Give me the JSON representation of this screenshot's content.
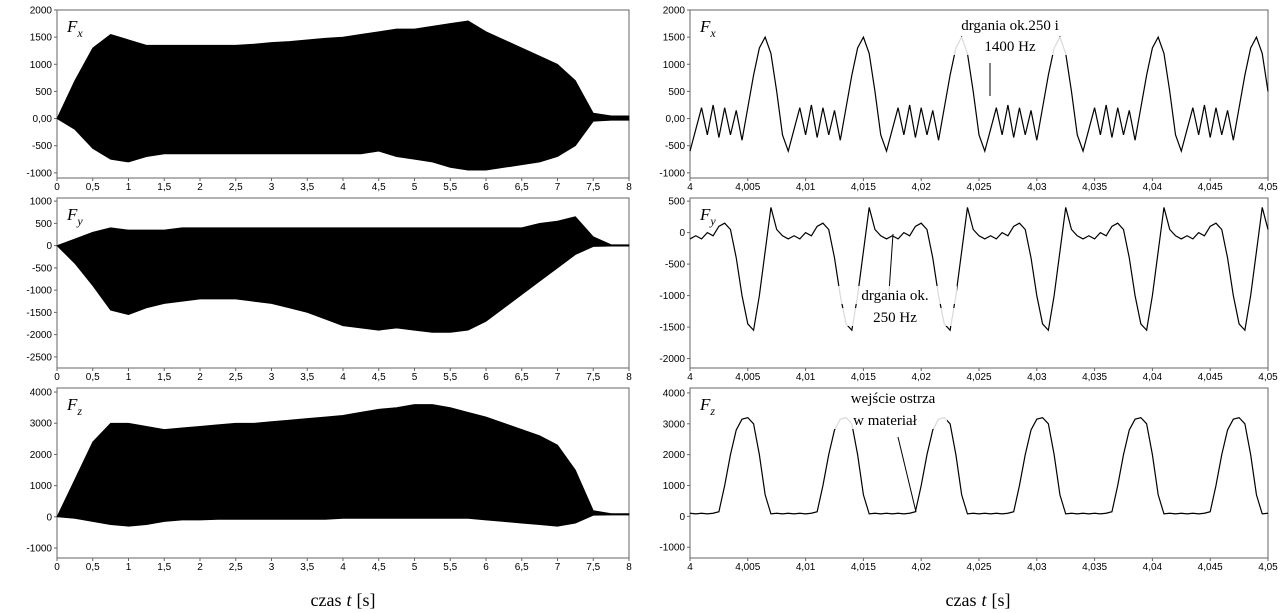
{
  "chart_data": [
    {
      "type": "area",
      "label": "F",
      "label_sub": "x",
      "color": "#000000",
      "grid": false,
      "x": [
        0,
        0.25,
        0.5,
        0.75,
        1,
        1.25,
        1.5,
        1.75,
        2,
        2.25,
        2.5,
        2.75,
        3,
        3.25,
        3.5,
        3.75,
        4,
        4.25,
        4.5,
        4.75,
        5,
        5.25,
        5.5,
        5.75,
        6,
        6.25,
        6.5,
        6.75,
        7,
        7.25,
        7.5,
        7.75,
        8
      ],
      "upper": [
        0,
        700,
        1300,
        1550,
        1450,
        1350,
        1350,
        1350,
        1350,
        1350,
        1350,
        1370,
        1400,
        1420,
        1450,
        1480,
        1500,
        1550,
        1600,
        1650,
        1650,
        1700,
        1750,
        1800,
        1600,
        1450,
        1300,
        1150,
        1000,
        700,
        100,
        50,
        50
      ],
      "lower": [
        0,
        -200,
        -550,
        -750,
        -800,
        -700,
        -650,
        -650,
        -650,
        -650,
        -650,
        -650,
        -650,
        -650,
        -650,
        -650,
        -650,
        -650,
        -600,
        -700,
        -750,
        -800,
        -900,
        -950,
        -950,
        -900,
        -850,
        -800,
        -700,
        -500,
        -50,
        -30,
        -30
      ],
      "xlim": [
        0,
        8
      ],
      "ylim": [
        -1095,
        2000
      ],
      "xticks": [
        0,
        {
          "value": 0.5,
          "label": "0,5"
        },
        1,
        {
          "value": 1.5,
          "label": "1,5"
        },
        2,
        {
          "value": 2.5,
          "label": "2,5"
        },
        3,
        {
          "value": 3.5,
          "label": "3,5"
        },
        4,
        {
          "value": 4.5,
          "label": "4,5"
        },
        5,
        {
          "value": 5.5,
          "label": "5,5"
        },
        6,
        {
          "value": 6.5,
          "label": "6,5"
        },
        7,
        {
          "value": 7.5,
          "label": "7,5"
        },
        8
      ],
      "yticks": [
        2000,
        1500,
        1000,
        500,
        {
          "value": 0,
          "label": "0,00"
        },
        -500,
        -1000
      ]
    },
    {
      "type": "line",
      "label": "F",
      "label_sub": "x",
      "color": "#000000",
      "grid": false,
      "annotation": [
        "drgania ok.250 i",
        "1400 Hz"
      ],
      "x": [
        4,
        4.0005,
        4.001,
        4.0015,
        4.002,
        4.0025,
        4.003,
        4.0035,
        4.004,
        4.0045,
        4.005,
        4.0055,
        4.006,
        4.0065,
        4.007,
        4.0075,
        4.008,
        4.0085,
        4.009,
        4.0095,
        4.01,
        4.0105,
        4.011,
        4.0115,
        4.012,
        4.0125,
        4.013,
        4.0135,
        4.014,
        4.0145,
        4.015,
        4.0155,
        4.016,
        4.0165,
        4.017,
        4.0175,
        4.018,
        4.0185,
        4.019,
        4.0195,
        4.02,
        4.0205,
        4.021,
        4.0215,
        4.022,
        4.0225,
        4.023,
        4.0235,
        4.024,
        4.0245,
        4.025,
        4.0255,
        4.026,
        4.0265,
        4.027,
        4.0275,
        4.028,
        4.0285,
        4.029,
        4.0295,
        4.03,
        4.0305,
        4.031,
        4.0315,
        4.032,
        4.0325,
        4.033,
        4.0335,
        4.034,
        4.0345,
        4.035,
        4.0355,
        4.036,
        4.0365,
        4.037,
        4.0375,
        4.038,
        4.0385,
        4.039,
        4.0395,
        4.04,
        4.0405,
        4.041,
        4.0415,
        4.042,
        4.0425,
        4.043,
        4.0435,
        4.044,
        4.0445,
        4.045,
        4.0455,
        4.046,
        4.0465,
        4.047,
        4.0475,
        4.048,
        4.0485,
        4.049,
        4.0495,
        4.05
      ],
      "values": [
        -600,
        -200,
        200,
        -300,
        250,
        -350,
        200,
        -300,
        150,
        -400,
        200,
        800,
        1300,
        1500,
        1200,
        500,
        -300,
        -600,
        -200,
        200,
        -300,
        250,
        -350,
        200,
        -300,
        150,
        -400,
        200,
        800,
        1300,
        1500,
        1200,
        500,
        -300,
        -600,
        -200,
        200,
        -300,
        250,
        -350,
        200,
        -300,
        150,
        -400,
        200,
        800,
        1300,
        1500,
        1200,
        500,
        -300,
        -600,
        -200,
        200,
        -300,
        250,
        -350,
        200,
        -300,
        150,
        -400,
        200,
        800,
        1300,
        1500,
        1200,
        500,
        -300,
        -600,
        -200,
        200,
        -300,
        250,
        -350,
        200,
        -300,
        150,
        -400,
        200,
        800,
        1300,
        1500,
        1200,
        500,
        -300,
        -600,
        -200,
        200,
        -300,
        250,
        -350,
        200,
        -300,
        150,
        -400,
        200,
        800,
        1300,
        1500,
        1200,
        500
      ],
      "xlim": [
        4,
        4.05
      ],
      "ylim": [
        -1095,
        2000
      ],
      "xticks": [
        4,
        {
          "value": 4.005,
          "label": "4,005"
        },
        {
          "value": 4.01,
          "label": "4,01"
        },
        {
          "value": 4.015,
          "label": "4,015"
        },
        {
          "value": 4.02,
          "label": "4,02"
        },
        {
          "value": 4.025,
          "label": "4,025"
        },
        {
          "value": 4.03,
          "label": "4,03"
        },
        {
          "value": 4.035,
          "label": "4,035"
        },
        {
          "value": 4.04,
          "label": "4,04"
        },
        {
          "value": 4.045,
          "label": "4,045"
        },
        {
          "value": 4.05,
          "label": "4,05"
        }
      ],
      "yticks": [
        2000,
        1500,
        1000,
        500,
        {
          "value": 0,
          "label": "0,00"
        },
        -500,
        -1000
      ]
    },
    {
      "type": "area",
      "label": "F",
      "label_sub": "y",
      "color": "#000000",
      "grid": false,
      "x": [
        0,
        0.25,
        0.5,
        0.75,
        1,
        1.25,
        1.5,
        1.75,
        2,
        2.25,
        2.5,
        2.75,
        3,
        3.25,
        3.5,
        3.75,
        4,
        4.25,
        4.5,
        4.75,
        5,
        5.25,
        5.5,
        5.75,
        6,
        6.25,
        6.5,
        6.75,
        7,
        7.25,
        7.5,
        7.75,
        8
      ],
      "upper": [
        0,
        150,
        300,
        400,
        350,
        350,
        350,
        400,
        400,
        400,
        400,
        400,
        400,
        400,
        400,
        400,
        400,
        400,
        400,
        400,
        400,
        400,
        400,
        400,
        400,
        400,
        400,
        500,
        550,
        650,
        200,
        20,
        20
      ],
      "lower": [
        0,
        -400,
        -900,
        -1450,
        -1550,
        -1400,
        -1300,
        -1250,
        -1200,
        -1200,
        -1200,
        -1250,
        -1300,
        -1400,
        -1500,
        -1650,
        -1800,
        -1850,
        -1900,
        -1850,
        -1900,
        -1950,
        -1950,
        -1900,
        -1700,
        -1400,
        -1100,
        -800,
        -500,
        -200,
        -20,
        -10,
        -10
      ],
      "xlim": [
        0,
        8
      ],
      "ylim": [
        -2750,
        1070
      ],
      "xticks": [
        0,
        {
          "value": 0.5,
          "label": "0,5"
        },
        1,
        {
          "value": 1.5,
          "label": "1,5"
        },
        2,
        {
          "value": 2.5,
          "label": "2,5"
        },
        3,
        {
          "value": 3.5,
          "label": "3,5"
        },
        4,
        {
          "value": 4.5,
          "label": "4,5"
        },
        5,
        {
          "value": 5.5,
          "label": "5,5"
        },
        6,
        {
          "value": 6.5,
          "label": "6,5"
        },
        7,
        {
          "value": 7.5,
          "label": "7,5"
        },
        8
      ],
      "yticks": [
        1000,
        500,
        0,
        -500,
        -1000,
        -1500,
        -2000,
        -2500
      ]
    },
    {
      "type": "line",
      "label": "F",
      "label_sub": "y",
      "color": "#000000",
      "grid": false,
      "annotation": [
        "drgania ok.",
        "250 Hz"
      ],
      "x": [
        4,
        4.0005,
        4.001,
        4.0015,
        4.002,
        4.0025,
        4.003,
        4.0035,
        4.004,
        4.0045,
        4.005,
        4.0055,
        4.006,
        4.0065,
        4.007,
        4.0075,
        4.008,
        4.0085,
        4.009,
        4.0095,
        4.01,
        4.0105,
        4.011,
        4.0115,
        4.012,
        4.0125,
        4.013,
        4.0135,
        4.014,
        4.0145,
        4.015,
        4.0155,
        4.016,
        4.0165,
        4.017,
        4.0175,
        4.018,
        4.0185,
        4.019,
        4.0195,
        4.02,
        4.0205,
        4.021,
        4.0215,
        4.022,
        4.0225,
        4.023,
        4.0235,
        4.024,
        4.0245,
        4.025,
        4.0255,
        4.026,
        4.0265,
        4.027,
        4.0275,
        4.028,
        4.0285,
        4.029,
        4.0295,
        4.03,
        4.0305,
        4.031,
        4.0315,
        4.032,
        4.0325,
        4.033,
        4.0335,
        4.034,
        4.0345,
        4.035,
        4.0355,
        4.036,
        4.0365,
        4.037,
        4.0375,
        4.038,
        4.0385,
        4.039,
        4.0395,
        4.04,
        4.0405,
        4.041,
        4.0415,
        4.042,
        4.0425,
        4.043,
        4.0435,
        4.044,
        4.0445,
        4.045,
        4.0455,
        4.046,
        4.0465,
        4.047,
        4.0475,
        4.048,
        4.0485,
        4.049,
        4.0495,
        4.05
      ],
      "values": [
        -100,
        -50,
        -100,
        0,
        -50,
        100,
        150,
        50,
        -400,
        -1000,
        -1450,
        -1550,
        -1000,
        -300,
        400,
        50,
        -50,
        -100,
        -50,
        -100,
        0,
        -50,
        100,
        150,
        50,
        -400,
        -1000,
        -1450,
        -1550,
        -1000,
        -300,
        400,
        50,
        -50,
        -100,
        -50,
        -100,
        0,
        -50,
        100,
        150,
        50,
        -400,
        -1000,
        -1450,
        -1550,
        -1000,
        -300,
        400,
        50,
        -50,
        -100,
        -50,
        -100,
        0,
        -50,
        100,
        150,
        50,
        -400,
        -1000,
        -1450,
        -1550,
        -1000,
        -300,
        400,
        50,
        -50,
        -100,
        -50,
        -100,
        0,
        -50,
        100,
        150,
        50,
        -400,
        -1000,
        -1450,
        -1550,
        -1000,
        -300,
        400,
        50,
        -50,
        -100,
        -50,
        -100,
        0,
        -50,
        100,
        150,
        50,
        -400,
        -1000,
        -1450,
        -1550,
        -1000,
        -300,
        400,
        50
      ],
      "xlim": [
        4,
        4.05
      ],
      "ylim": [
        -2150,
        550
      ],
      "xticks": [
        4,
        {
          "value": 4.005,
          "label": "4,005"
        },
        {
          "value": 4.01,
          "label": "4,01"
        },
        {
          "value": 4.015,
          "label": "4,015"
        },
        {
          "value": 4.02,
          "label": "4,02"
        },
        {
          "value": 4.025,
          "label": "4,025"
        },
        {
          "value": 4.03,
          "label": "4,03"
        },
        {
          "value": 4.035,
          "label": "4,035"
        },
        {
          "value": 4.04,
          "label": "4,04"
        },
        {
          "value": 4.045,
          "label": "4,045"
        },
        {
          "value": 4.05,
          "label": "4,05"
        }
      ],
      "yticks": [
        500,
        0,
        -500,
        -1000,
        -1500,
        -2000
      ]
    },
    {
      "type": "area",
      "label": "F",
      "label_sub": "z",
      "color": "#000000",
      "grid": false,
      "x": [
        0,
        0.25,
        0.5,
        0.75,
        1,
        1.25,
        1.5,
        1.75,
        2,
        2.25,
        2.5,
        2.75,
        3,
        3.25,
        3.5,
        3.75,
        4,
        4.25,
        4.5,
        4.75,
        5,
        5.25,
        5.5,
        5.75,
        6,
        6.25,
        6.5,
        6.75,
        7,
        7.25,
        7.5,
        7.75,
        8
      ],
      "upper": [
        0,
        1200,
        2400,
        3000,
        3000,
        2900,
        2800,
        2850,
        2900,
        2950,
        3000,
        3000,
        3050,
        3100,
        3150,
        3200,
        3250,
        3350,
        3450,
        3500,
        3600,
        3600,
        3500,
        3350,
        3200,
        3000,
        2800,
        2600,
        2300,
        1500,
        200,
        100,
        100
      ],
      "lower": [
        0,
        -50,
        -150,
        -250,
        -300,
        -250,
        -150,
        -100,
        -100,
        -80,
        -80,
        -80,
        -80,
        -80,
        -80,
        -80,
        -50,
        -50,
        -50,
        -50,
        -50,
        -50,
        -50,
        -50,
        -100,
        -150,
        -200,
        -250,
        -300,
        -200,
        50,
        60,
        60
      ],
      "xlim": [
        0,
        8
      ],
      "ylim": [
        -1320,
        4130
      ],
      "xticks": [
        0,
        {
          "value": 0.5,
          "label": "0,5"
        },
        1,
        {
          "value": 1.5,
          "label": "1,5"
        },
        2,
        {
          "value": 2.5,
          "label": "2,5"
        },
        3,
        {
          "value": 3.5,
          "label": "3,5"
        },
        4,
        {
          "value": 4.5,
          "label": "4,5"
        },
        5,
        {
          "value": 5.5,
          "label": "5,5"
        },
        6,
        {
          "value": 6.5,
          "label": "6,5"
        },
        7,
        {
          "value": 7.5,
          "label": "7,5"
        },
        8
      ],
      "yticks": [
        4000,
        3000,
        2000,
        1000,
        0,
        -1000
      ]
    },
    {
      "type": "line",
      "label": "F",
      "label_sub": "z",
      "color": "#000000",
      "grid": false,
      "annotation": [
        "wejście ostrza",
        "w materiał"
      ],
      "x": [
        4,
        4.0005,
        4.001,
        4.0015,
        4.002,
        4.0025,
        4.003,
        4.0035,
        4.004,
        4.0045,
        4.005,
        4.0055,
        4.006,
        4.0065,
        4.007,
        4.0075,
        4.008,
        4.0085,
        4.009,
        4.0095,
        4.01,
        4.0105,
        4.011,
        4.0115,
        4.012,
        4.0125,
        4.013,
        4.0135,
        4.014,
        4.0145,
        4.015,
        4.0155,
        4.016,
        4.0165,
        4.017,
        4.0175,
        4.018,
        4.0185,
        4.019,
        4.0195,
        4.02,
        4.0205,
        4.021,
        4.0215,
        4.022,
        4.0225,
        4.023,
        4.0235,
        4.024,
        4.0245,
        4.025,
        4.0255,
        4.026,
        4.0265,
        4.027,
        4.0275,
        4.028,
        4.0285,
        4.029,
        4.0295,
        4.03,
        4.0305,
        4.031,
        4.0315,
        4.032,
        4.0325,
        4.033,
        4.0335,
        4.034,
        4.0345,
        4.035,
        4.0355,
        4.036,
        4.0365,
        4.037,
        4.0375,
        4.038,
        4.0385,
        4.039,
        4.0395,
        4.04,
        4.0405,
        4.041,
        4.0415,
        4.042,
        4.0425,
        4.043,
        4.0435,
        4.044,
        4.0445,
        4.045,
        4.0455,
        4.046,
        4.0465,
        4.047,
        4.0475,
        4.048,
        4.0485,
        4.049,
        4.0495,
        4.05
      ],
      "values": [
        100,
        80,
        100,
        80,
        100,
        150,
        1000,
        2000,
        2800,
        3150,
        3200,
        3000,
        2000,
        700,
        80,
        100,
        80,
        100,
        80,
        100,
        80,
        100,
        150,
        1000,
        2000,
        2800,
        3150,
        3200,
        3000,
        2000,
        700,
        80,
        100,
        80,
        100,
        80,
        100,
        80,
        100,
        150,
        1000,
        2000,
        2800,
        3150,
        3200,
        3000,
        2000,
        700,
        80,
        100,
        80,
        100,
        80,
        100,
        80,
        100,
        150,
        1000,
        2000,
        2800,
        3150,
        3200,
        3000,
        2000,
        700,
        80,
        100,
        80,
        100,
        80,
        100,
        80,
        100,
        150,
        1000,
        2000,
        2800,
        3150,
        3200,
        3000,
        2000,
        700,
        80,
        100,
        80,
        100,
        80,
        100,
        80,
        100,
        150,
        1000,
        2000,
        2800,
        3150,
        3200,
        3000,
        2000,
        700,
        80,
        100
      ],
      "xlim": [
        4,
        4.05
      ],
      "ylim": [
        -1350,
        4160
      ],
      "xticks": [
        4,
        {
          "value": 4.005,
          "label": "4,005"
        },
        {
          "value": 4.01,
          "label": "4,01"
        },
        {
          "value": 4.015,
          "label": "4,015"
        },
        {
          "value": 4.02,
          "label": "4,02"
        },
        {
          "value": 4.025,
          "label": "4,025"
        },
        {
          "value": 4.03,
          "label": "4,03"
        },
        {
          "value": 4.035,
          "label": "4,035"
        },
        {
          "value": 4.04,
          "label": "4,04"
        },
        {
          "value": 4.045,
          "label": "4,045"
        },
        {
          "value": 4.05,
          "label": "4,05"
        }
      ],
      "yticks": [
        4000,
        3000,
        2000,
        1000,
        0,
        -1000
      ]
    }
  ],
  "captions": [
    [
      "czas",
      "t",
      "[s]"
    ],
    [
      "czas",
      "t",
      "[s]"
    ]
  ]
}
